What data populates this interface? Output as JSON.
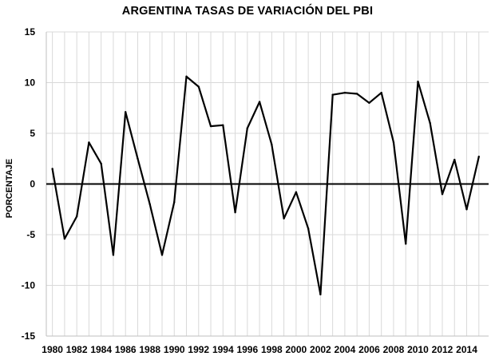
{
  "chart_data": {
    "type": "line",
    "title": "ARGENTINA TASAS DE VARIACIÓN DEL PBI",
    "xlabel": "",
    "ylabel": "PORCENTAJE",
    "grid": true,
    "ylim": [
      -15,
      15
    ],
    "yticks": [
      15,
      10,
      5,
      0,
      -5,
      -10,
      -15
    ],
    "ytick_labels": [
      "15",
      "10",
      "5",
      "0",
      "-5",
      "-10",
      "-15"
    ],
    "xticks": [
      1980,
      1982,
      1984,
      1986,
      1988,
      1990,
      1992,
      1994,
      1996,
      1998,
      2000,
      2002,
      2004,
      2006,
      2008,
      2010,
      2012,
      2014
    ],
    "xtick_labels": [
      "1980",
      "1982",
      "1984",
      "1986",
      "1988",
      "1990",
      "1992",
      "1994",
      "1996",
      "1998",
      "2000",
      "2002",
      "2004",
      "2006",
      "2008",
      "2010",
      "2012",
      "2014"
    ],
    "x": [
      1980,
      1981,
      1982,
      1983,
      1984,
      1985,
      1986,
      1987,
      1988,
      1989,
      1990,
      1991,
      1992,
      1993,
      1994,
      1995,
      1996,
      1997,
      1998,
      1999,
      2000,
      2001,
      2002,
      2003,
      2004,
      2005,
      2006,
      2007,
      2008,
      2009,
      2010,
      2011,
      2012,
      2013,
      2014,
      2015
    ],
    "series": [
      {
        "name": "PBI",
        "values": [
          1.5,
          -5.4,
          -3.2,
          4.1,
          2.0,
          -7.0,
          7.1,
          2.5,
          -2.0,
          -7.0,
          -1.8,
          10.6,
          9.6,
          5.7,
          5.8,
          -2.8,
          5.5,
          8.1,
          3.9,
          -3.4,
          -0.8,
          -4.4,
          -10.9,
          8.8,
          9.0,
          8.9,
          8.0,
          9.0,
          4.1,
          -5.9,
          10.1,
          6.0,
          -1.0,
          2.4,
          -2.5,
          2.7
        ]
      }
    ],
    "zero_line": true
  }
}
